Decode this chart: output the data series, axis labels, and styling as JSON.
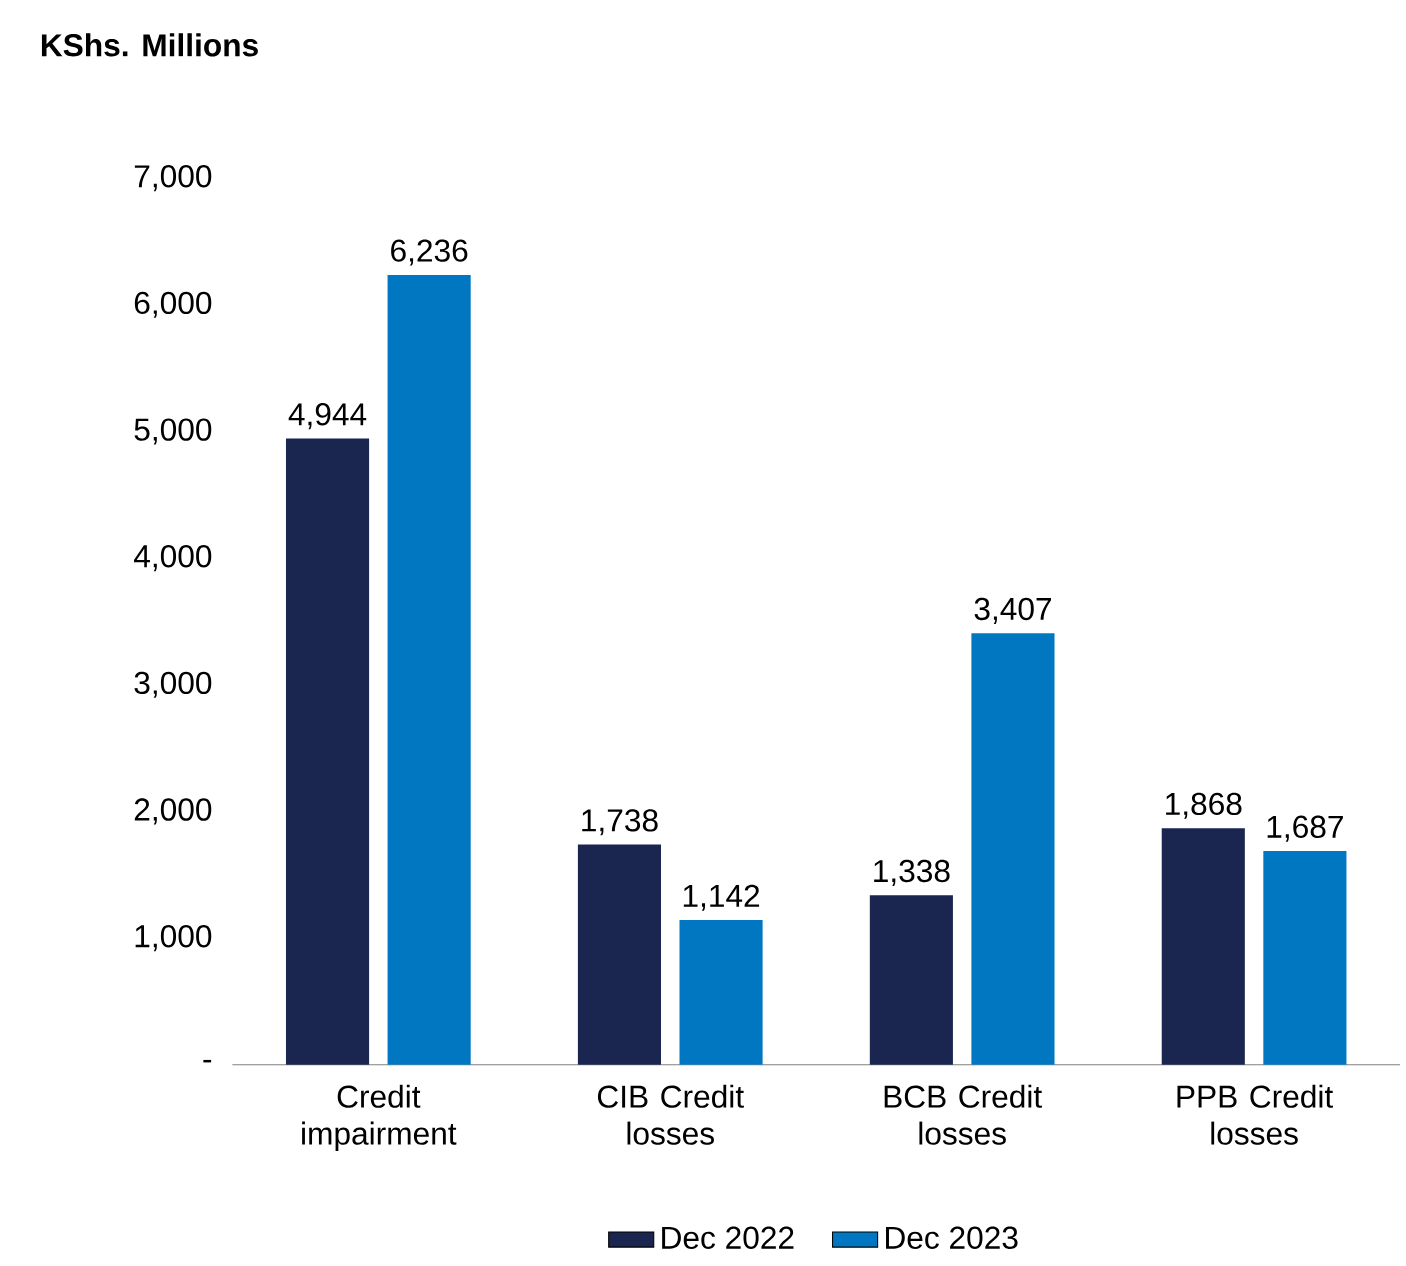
{
  "chart_data": {
    "type": "bar",
    "ylabel": "KShs. Millions",
    "categories": [
      "Credit impairment",
      "CIB Credit losses",
      "BCB Credit losses",
      "PPB Credit losses"
    ],
    "series": [
      {
        "name": "Dec 2022",
        "color": "#1a2550",
        "values": [
          4944,
          1738,
          1338,
          1868
        ],
        "value_labels": [
          "4,944",
          "1,738",
          "1,338",
          "1,868"
        ]
      },
      {
        "name": "Dec 2023",
        "color": "#0077c0",
        "values": [
          6236,
          1142,
          3407,
          1687
        ],
        "value_labels": [
          "6,236",
          "1,142",
          "3,407",
          "1,687"
        ]
      }
    ],
    "ylim": [
      0,
      7000
    ],
    "yticks": [
      {
        "value": 0,
        "label": "-"
      },
      {
        "value": 1000,
        "label": "1,000"
      },
      {
        "value": 2000,
        "label": "2,000"
      },
      {
        "value": 3000,
        "label": "3,000"
      },
      {
        "value": 4000,
        "label": "4,000"
      },
      {
        "value": 5000,
        "label": "5,000"
      },
      {
        "value": 6000,
        "label": "6,000"
      },
      {
        "value": 7000,
        "label": "7,000"
      }
    ],
    "legend": "bottom"
  }
}
